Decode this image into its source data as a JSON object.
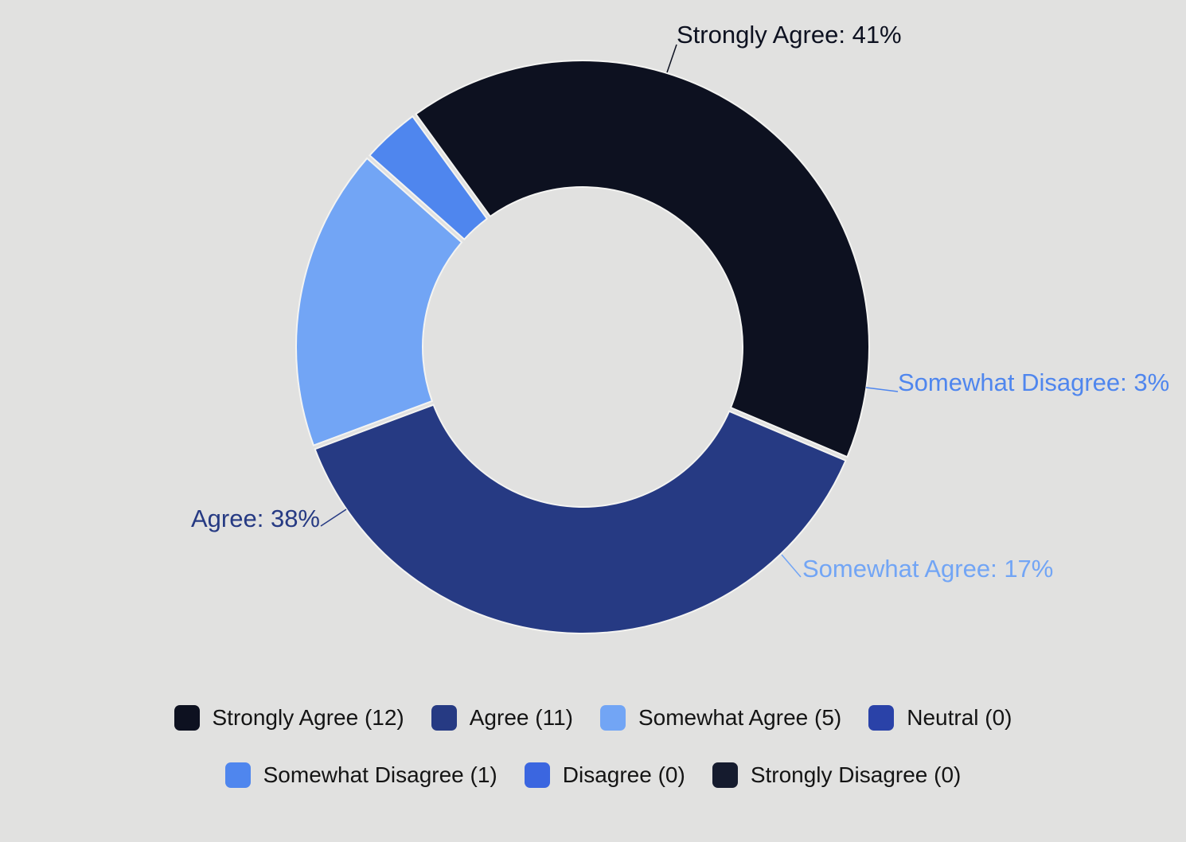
{
  "chart_data": {
    "type": "pie",
    "subtype": "donut",
    "slices": [
      {
        "name": "Strongly Agree",
        "count": 12,
        "percent": 41,
        "color": "#0d1120",
        "label": "Strongly Agree: 41%"
      },
      {
        "name": "Agree",
        "count": 11,
        "percent": 38,
        "color": "#263a83",
        "label": "Agree: 38%"
      },
      {
        "name": "Somewhat Agree",
        "count": 5,
        "percent": 17,
        "color": "#72a5f5",
        "label": "Somewhat Agree: 17%"
      },
      {
        "name": "Neutral",
        "count": 0,
        "percent": 0,
        "color": "#2a42a8",
        "label": ""
      },
      {
        "name": "Somewhat Disagree",
        "count": 1,
        "percent": 3,
        "color": "#4f86ee",
        "label": "Somewhat Disagree: 3%"
      },
      {
        "name": "Disagree",
        "count": 0,
        "percent": 0,
        "color": "#3b66e0",
        "label": ""
      },
      {
        "name": "Strongly Disagree",
        "count": 0,
        "percent": 0,
        "color": "#151b2e",
        "label": ""
      }
    ],
    "legend_position": "bottom"
  },
  "legend": {
    "row1": [
      {
        "text": "Strongly Agree (12)",
        "color": "#0d1120"
      },
      {
        "text": "Agree (11)",
        "color": "#263a83"
      },
      {
        "text": "Somewhat Agree (5)",
        "color": "#72a5f5"
      },
      {
        "text": "Neutral (0)",
        "color": "#2a42a8"
      }
    ],
    "row2": [
      {
        "text": "Somewhat Disagree (1)",
        "color": "#4f86ee"
      },
      {
        "text": "Disagree (0)",
        "color": "#3b66e0"
      },
      {
        "text": "Strongly Disagree (0)",
        "color": "#151b2e"
      }
    ]
  }
}
